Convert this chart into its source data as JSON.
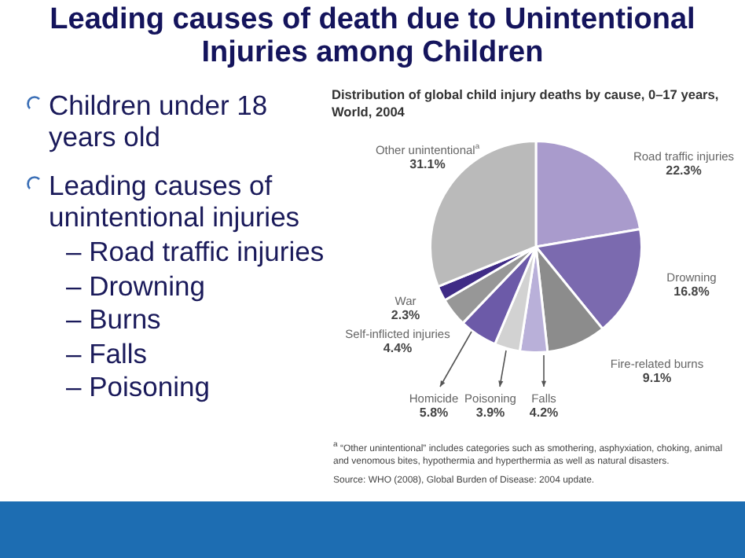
{
  "chart_data": {
    "type": "pie",
    "title": "Leading causes of death due to Unintentional Injuries among Children",
    "subtitle": "Distribution of global child injury deaths by cause, 0–17 years, World, 2004",
    "categories": [
      "Road traffic injuries",
      "Drowning",
      "Fire-related burns",
      "Falls",
      "Poisoning",
      "Homicide",
      "Self-inflicted injuries",
      "War",
      "Other unintentional$^{a}$"
    ],
    "values": [
      22.3,
      16.8,
      9.1,
      4.2,
      3.9,
      5.8,
      4.4,
      2.3,
      31.1
    ],
    "value_labels": [
      "22.3%",
      "16.8%",
      "9.1%",
      "4.2%",
      "3.9%",
      "5.8%",
      "4.4%",
      "2.3%",
      "31.1%"
    ],
    "colors": [
      "#a99bcc",
      "#7b6aaf",
      "#8c8c8c",
      "#b9b0d9",
      "#d2d2d2",
      "#6c5aa8",
      "#979797",
      "#3f2b86",
      "#bababa"
    ],
    "legend": false,
    "annotations": [
      "Children under 18 years old",
      "Leading causes of unintentional injuries",
      "– Road traffic injuries",
      "– Drowning",
      "– Burns",
      "– Falls",
      "– Poisoning",
      "$^{a}$ “Other unintentional” includes categories such as smothering, asphyxiation, choking, animal and venomous bites, hypothermia and hyperthermia as well as natural disasters.",
      "Source: WHO (2008), Global Burden of Disease: 2004 update."
    ]
  }
}
